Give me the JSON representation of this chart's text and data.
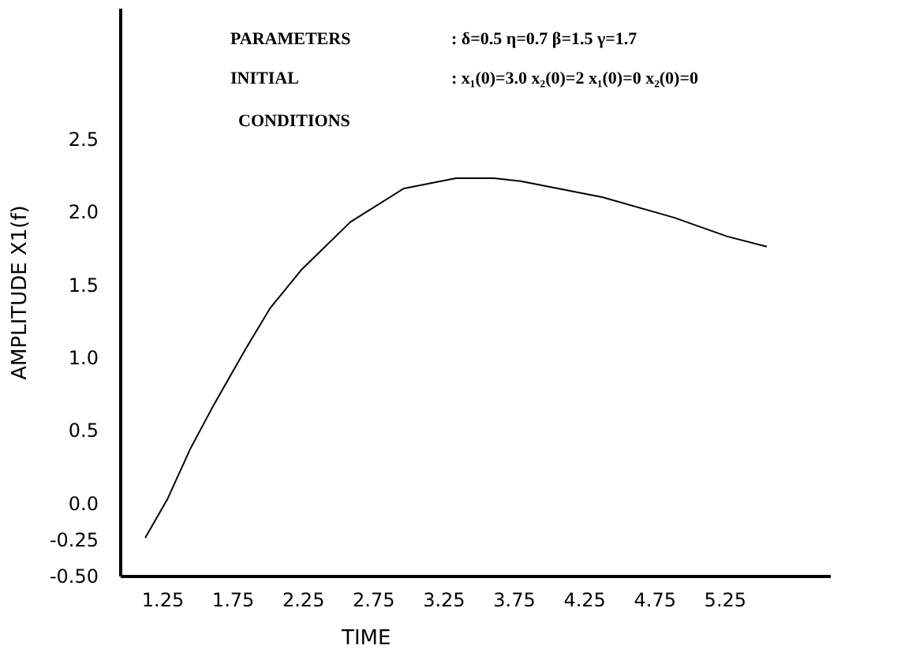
{
  "chart_data": {
    "type": "line",
    "xlabel": "TIME",
    "ylabel": "AMPLITUDE  X1(f)",
    "annotations": [
      "PARAMETERS",
      ": δ=0.5     η=0.7    β=1.5    γ=1.7",
      "INITIAL",
      ": x₁(0)=3.0  x₂(0)=2  x₁(0)=0  x₂(0)=0",
      "CONDITIONS"
    ],
    "x": [
      1.13,
      1.29,
      1.45,
      1.61,
      1.84,
      2.02,
      2.24,
      2.59,
      2.97,
      3.34,
      3.61,
      3.8,
      4.38,
      4.89,
      5.27,
      5.55
    ],
    "series": [
      {
        "color": "#000000",
        "values": [
          -0.24,
          0.03,
          0.37,
          0.66,
          1.05,
          1.34,
          1.6,
          1.93,
          2.16,
          2.23,
          2.23,
          2.21,
          2.1,
          1.96,
          1.83,
          1.76
        ]
      }
    ],
    "xlim": [
      0.95,
      6.0
    ],
    "xticks": [
      1.25,
      1.75,
      2.25,
      2.75,
      3.25,
      3.75,
      4.25,
      4.75,
      5.25
    ],
    "ylim": [
      -0.5,
      3.4
    ],
    "yticks": [
      {
        "value": -0.5,
        "label": "-0.50"
      },
      -0.25,
      {
        "value": 0,
        "label": "0.0"
      },
      0.5,
      {
        "value": 1,
        "label": "1.0"
      },
      1.5,
      {
        "value": 2,
        "label": "2.0"
      },
      2.5
    ],
    "grid": false,
    "line_style": "solid",
    "marker": "none"
  }
}
